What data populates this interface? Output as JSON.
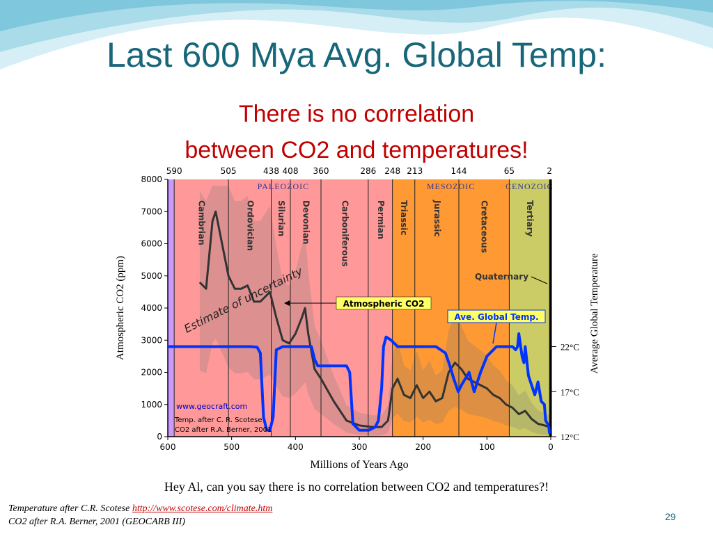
{
  "slide": {
    "title": "Last 600 Mya Avg. Global Temp:",
    "subtitle_line1": "There is no correlation",
    "subtitle_line2": "between CO2 and temperatures!",
    "caption": "Hey Al, can you say there is no correlation between CO2 and temperatures?!",
    "footnote_line1_text": "Temperature after C.R. Scotese ",
    "footnote_line1_link": "http://www.scotese.com/climate.htm",
    "footnote_line2": "CO2 after R.A. Berner, 2001 (GEOCARB III)",
    "page_number": "29",
    "colors": {
      "title": "#17667a",
      "subtitle": "#c00000",
      "wave": "#a9dbe8"
    }
  },
  "chart_data": {
    "type": "line",
    "xlabel": "Millions of Years Ago",
    "ylabel": "Atmospheric CO2 (ppm)",
    "y2label": "Average Global Temperature",
    "xlim": [
      600,
      0
    ],
    "ylim": [
      0,
      8000
    ],
    "x_ticks": [
      "600",
      "500",
      "400",
      "300",
      "200",
      "100",
      "0"
    ],
    "y_ticks": [
      "0",
      "1000",
      "2000",
      "3000",
      "4000",
      "5000",
      "6000",
      "7000",
      "8000"
    ],
    "y2_ticks": [
      {
        "label": "22°C",
        "co2": 2800
      },
      {
        "label": "17°C",
        "co2": 1400
      },
      {
        "label": "12°C",
        "co2": 0
      }
    ],
    "boundaries": [
      "590",
      "505",
      "438",
      "408",
      "360",
      "286",
      "248",
      "213",
      "144",
      "65",
      "2"
    ],
    "eras": [
      {
        "name": "PALEOZOIC",
        "from": 590,
        "to": 248,
        "color": "#ff9999"
      },
      {
        "name": "MESOZOIC",
        "from": 248,
        "to": 65,
        "color": "#ff9933"
      },
      {
        "name": "CENOZOIC",
        "from": 65,
        "to": 2,
        "color": "#cccc66"
      }
    ],
    "periods": [
      {
        "name": "Cambrian",
        "from": 590,
        "to": 505
      },
      {
        "name": "Ordovician",
        "from": 505,
        "to": 438
      },
      {
        "name": "Silurian",
        "from": 438,
        "to": 408
      },
      {
        "name": "Devonian",
        "from": 408,
        "to": 360
      },
      {
        "name": "Carboniferous",
        "from": 360,
        "to": 286
      },
      {
        "name": "Permian",
        "from": 286,
        "to": 248
      },
      {
        "name": "Triassic",
        "from": 248,
        "to": 213
      },
      {
        "name": "Jurassic",
        "from": 213,
        "to": 144
      },
      {
        "name": "Cretaceous",
        "from": 144,
        "to": 65
      },
      {
        "name": "Tertiary",
        "from": 65,
        "to": 2
      }
    ],
    "annotations": {
      "co2": "Atmospheric CO2",
      "temp": "Ave. Global Temp.",
      "quaternary": "Quaternary",
      "uncertainty": "Estimate of uncertainty",
      "credit1": "www.geocraft.com",
      "credit2": "Temp. after C. R. Scotese",
      "credit3": "CO2 after R.A. Berner, 2001"
    },
    "series": [
      {
        "name": "Atmospheric CO2",
        "color": "#333333",
        "x": [
          550,
          540,
          530,
          525,
          515,
          505,
          495,
          485,
          475,
          465,
          455,
          445,
          440,
          430,
          420,
          410,
          400,
          390,
          385,
          380,
          370,
          360,
          340,
          320,
          300,
          280,
          265,
          255,
          248,
          240,
          230,
          220,
          210,
          200,
          190,
          180,
          170,
          160,
          150,
          145,
          140,
          130,
          120,
          110,
          100,
          90,
          80,
          70,
          60,
          50,
          40,
          30,
          20,
          10,
          2
        ],
        "y": [
          4800,
          4600,
          6700,
          7000,
          6000,
          5000,
          4600,
          4600,
          4700,
          4200,
          4200,
          4400,
          4500,
          3700,
          3000,
          2900,
          3200,
          3700,
          4000,
          3200,
          2100,
          1800,
          1100,
          500,
          350,
          300,
          300,
          500,
          1500,
          1800,
          1300,
          1200,
          1600,
          1200,
          1400,
          1100,
          1200,
          2000,
          2300,
          2200,
          2100,
          1800,
          1700,
          1600,
          1500,
          1300,
          1200,
          1000,
          900,
          700,
          800,
          550,
          400,
          350,
          300
        ]
      },
      {
        "name": "Ave. Global Temp.",
        "color": "#0033ff",
        "x": [
          600,
          520,
          470,
          460,
          455,
          450,
          445,
          440,
          435,
          430,
          420,
          400,
          375,
          370,
          365,
          355,
          340,
          320,
          315,
          310,
          300,
          290,
          285,
          275,
          270,
          265,
          262,
          258,
          250,
          245,
          240,
          238,
          230,
          200,
          180,
          165,
          158,
          152,
          145,
          140,
          128,
          120,
          110,
          100,
          85,
          60,
          55,
          52,
          50,
          45,
          42,
          40,
          35,
          30,
          25,
          20,
          15,
          10,
          8,
          5,
          3,
          2
        ],
        "y": [
          2800,
          2800,
          2800,
          2780,
          2600,
          600,
          200,
          200,
          600,
          2700,
          2800,
          2800,
          2800,
          2400,
          2200,
          2200,
          2200,
          2200,
          2000,
          400,
          200,
          200,
          200,
          300,
          500,
          1500,
          2800,
          3100,
          3000,
          2900,
          2800,
          2800,
          2800,
          2800,
          2800,
          2600,
          2200,
          1800,
          1400,
          1600,
          2000,
          1400,
          2000,
          2500,
          2800,
          2800,
          2700,
          2800,
          3200,
          2500,
          2300,
          2800,
          1900,
          1600,
          1300,
          1700,
          1100,
          1000,
          500,
          400,
          300,
          100
        ]
      }
    ]
  }
}
